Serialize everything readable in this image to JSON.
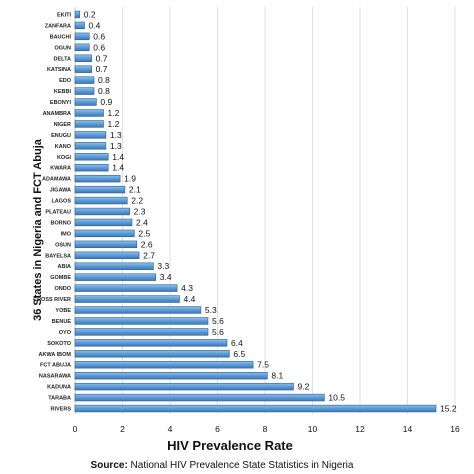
{
  "chart_data": {
    "type": "bar",
    "orientation": "horizontal",
    "categories": [
      "EKITI",
      "ZANFARA",
      "BAUCHI",
      "OGUN",
      "DELTA",
      "KATSINA",
      "EDO",
      "KEBBI",
      "EBONYI",
      "ANAMBRA",
      "NIGER",
      "ENUGU",
      "KANO",
      "KOGI",
      "KWARA",
      "ADAMAWA",
      "JIGAWA",
      "LAGOS",
      "PLATEAU",
      "BORNO",
      "IMO",
      "OSUN",
      "BAYELSA",
      "ABIA",
      "GOMBE",
      "ONDO",
      "CROSS RIVER",
      "YOBE",
      "BENUE",
      "OYO",
      "SOKOTO",
      "AKWA IBOM",
      "FCT ABUJA",
      "NASARAWA",
      "KADUNA",
      "TARABA",
      "RIVERS"
    ],
    "values": [
      0.2,
      0.4,
      0.6,
      0.6,
      0.7,
      0.7,
      0.8,
      0.8,
      0.9,
      1.2,
      1.2,
      1.3,
      1.3,
      1.4,
      1.4,
      1.9,
      2.1,
      2.2,
      2.3,
      2.4,
      2.5,
      2.6,
      2.7,
      3.3,
      3.4,
      4.3,
      4.4,
      5.3,
      5.6,
      5.6,
      6.4,
      6.5,
      7.5,
      8.1,
      9.2,
      10.5,
      15.2
    ],
    "value_labels": [
      "0.2",
      "0.4",
      "0.6",
      "0.6",
      "0.7",
      "0.7",
      "0.8",
      "0.8",
      "0.9",
      "1.2",
      "1.2",
      "1.3",
      "1.3",
      "1.4",
      "1.4",
      "1.9",
      "2.1",
      "2.2",
      "2.3",
      "2.4",
      "2.5",
      "2.6",
      "2.7",
      "3.3",
      "3.4",
      "4.3",
      "4.4",
      "5.3",
      "5.6",
      "5.6",
      "6.4",
      "6.5",
      "7.5",
      "8.1",
      "9.2",
      "10.5",
      "15.2"
    ],
    "xlim": [
      0,
      16
    ],
    "xticks": [
      "0",
      "2",
      "4",
      "6",
      "8",
      "10",
      "12",
      "14",
      "16"
    ],
    "xlabel": "HIV Prevalence Rate",
    "ylabel": "36 States in Nigeria and FCT Abuja",
    "grid": true,
    "bar_color": "#5b9bd5",
    "bar_edge_color": "#2e5f94"
  },
  "source": {
    "prefix": "Source:",
    "text": " National HIV Prevalence State Statistics in Nigeria"
  }
}
